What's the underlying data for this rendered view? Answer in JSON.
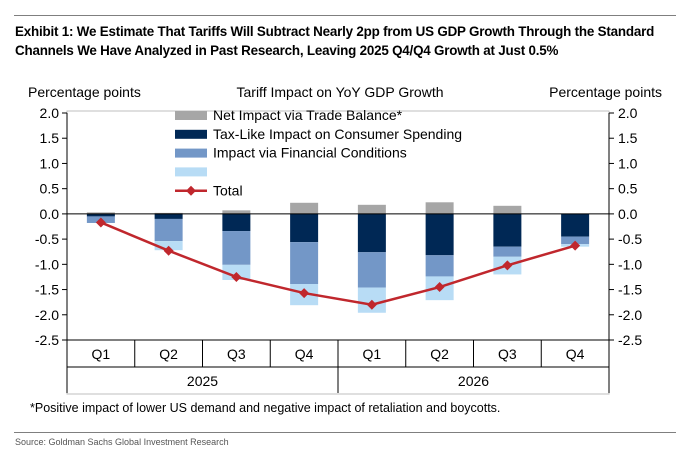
{
  "exhibit": {
    "title": "Exhibit 1: We Estimate That Tariffs Will Subtract Nearly 2pp from US GDP Growth Through the Standard Channels We Have Analyzed in Past Research, Leaving 2025 Q4/Q4 Growth at Just 0.5%",
    "footnote": "*Positive impact of lower US demand and negative impact of retaliation and boycotts.",
    "source": "Source: Goldman Sachs Global Investment Research"
  },
  "chart_data": {
    "type": "bar",
    "stacked": true,
    "title": "Tariff Impact on YoY GDP Growth",
    "ylabel_left": "Percentage points",
    "ylabel_right": "Percentage points",
    "ylim": [
      -2.5,
      2.0
    ],
    "yticks": [
      "2.0",
      "1.5",
      "1.0",
      "0.5",
      "0.0",
      "-0.5",
      "-1.0",
      "-1.5",
      "-2.0",
      "-2.5"
    ],
    "ytick_values": [
      2.0,
      1.5,
      1.0,
      0.5,
      0.0,
      -0.5,
      -1.0,
      -1.5,
      -2.0,
      -2.5
    ],
    "categories": [
      "Q1",
      "Q2",
      "Q3",
      "Q4",
      "Q1",
      "Q2",
      "Q3",
      "Q4"
    ],
    "year_groups": [
      {
        "label": "2025",
        "count": 4
      },
      {
        "label": "2026",
        "count": 4
      }
    ],
    "legend_position": "top-left",
    "series": [
      {
        "name": "Net Impact via Trade Balance*",
        "color": "#a6a6a6",
        "values": [
          0.03,
          0.02,
          0.07,
          0.22,
          0.18,
          0.23,
          0.16,
          0.0
        ]
      },
      {
        "name": "Tax-Like Impact on Consumer Spending",
        "color": "#002855",
        "values": [
          -0.05,
          -0.1,
          -0.34,
          -0.56,
          -0.76,
          -0.82,
          -0.65,
          -0.45
        ]
      },
      {
        "name": "Impact via Financial Conditions",
        "color": "#7397c7",
        "values": [
          -0.13,
          -0.44,
          -0.67,
          -0.83,
          -0.7,
          -0.42,
          -0.2,
          -0.15
        ]
      },
      {
        "name": "",
        "color": "#b8dcf5",
        "values": [
          0.0,
          -0.18,
          -0.3,
          -0.42,
          -0.5,
          -0.47,
          -0.35,
          -0.05
        ]
      }
    ],
    "line": {
      "name": "Total",
      "color": "#c0272d",
      "values": [
        -0.17,
        -0.73,
        -1.25,
        -1.57,
        -1.8,
        -1.45,
        -1.02,
        -0.63
      ]
    }
  }
}
